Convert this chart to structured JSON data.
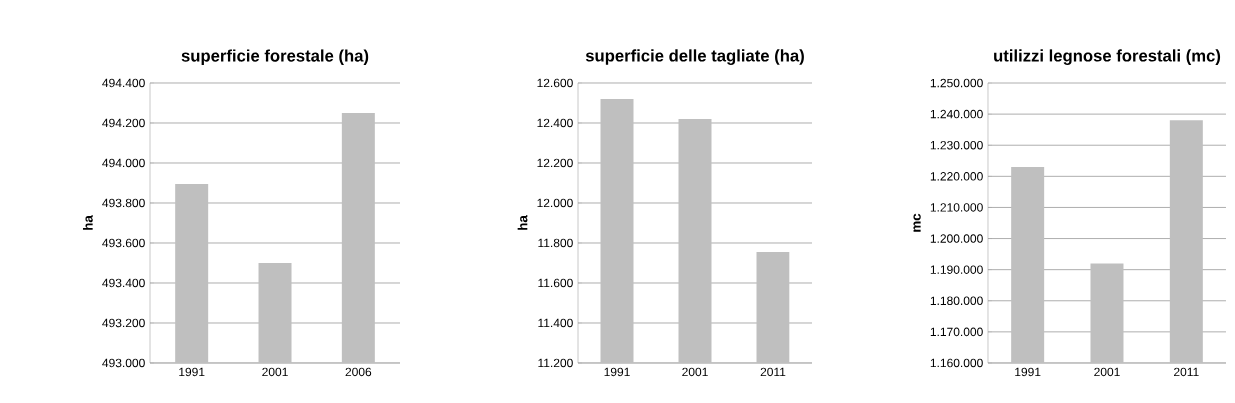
{
  "chart_data": [
    {
      "type": "bar",
      "title": "superficie forestale (ha)",
      "ylabel": "ha",
      "categories": [
        "1991",
        "2001",
        "2006"
      ],
      "values": [
        493895,
        493500,
        494250
      ],
      "color": "#bfbfbf",
      "ylim": [
        493000,
        494400
      ],
      "yticks": [
        {
          "value": 493000,
          "label": "493.000"
        },
        {
          "value": 493200,
          "label": "493.200"
        },
        {
          "value": 493400,
          "label": "493.400"
        },
        {
          "value": 493600,
          "label": "493.600"
        },
        {
          "value": 493800,
          "label": "493.800"
        },
        {
          "value": 494000,
          "label": "494.000"
        },
        {
          "value": 494200,
          "label": "494.200"
        },
        {
          "value": 494400,
          "label": "494.400"
        }
      ],
      "grid": "y"
    },
    {
      "type": "bar",
      "title": "superficie delle tagliate (ha)",
      "ylabel": "ha",
      "categories": [
        "1991",
        "2001",
        "2011"
      ],
      "values": [
        12520,
        12420,
        11755
      ],
      "color": "#bfbfbf",
      "ylim": [
        11200,
        12600
      ],
      "yticks": [
        {
          "value": 11200,
          "label": "11.200"
        },
        {
          "value": 11400,
          "label": "11.400"
        },
        {
          "value": 11600,
          "label": "11.600"
        },
        {
          "value": 11800,
          "label": "11.800"
        },
        {
          "value": 12000,
          "label": "12.000"
        },
        {
          "value": 12200,
          "label": "12.200"
        },
        {
          "value": 12400,
          "label": "12.400"
        },
        {
          "value": 12600,
          "label": "12.600"
        }
      ],
      "grid": "y"
    },
    {
      "type": "bar",
      "title": "utilizzi legnose forestali (mc)",
      "ylabel": "mc",
      "categories": [
        "1991",
        "2001",
        "2011"
      ],
      "values": [
        1223000,
        1192000,
        1238000
      ],
      "color": "#bfbfbf",
      "ylim": [
        1160000,
        1250000
      ],
      "yticks": [
        {
          "value": 1160000,
          "label": "1.160.000"
        },
        {
          "value": 1170000,
          "label": "1.170.000"
        },
        {
          "value": 1180000,
          "label": "1.180.000"
        },
        {
          "value": 1190000,
          "label": "1.190.000"
        },
        {
          "value": 1200000,
          "label": "1.200.000"
        },
        {
          "value": 1210000,
          "label": "1.210.000"
        },
        {
          "value": 1220000,
          "label": "1.220.000"
        },
        {
          "value": 1230000,
          "label": "1.230.000"
        },
        {
          "value": 1240000,
          "label": "1.240.000"
        },
        {
          "value": 1250000,
          "label": "1.250.000"
        }
      ],
      "grid": "y"
    }
  ]
}
